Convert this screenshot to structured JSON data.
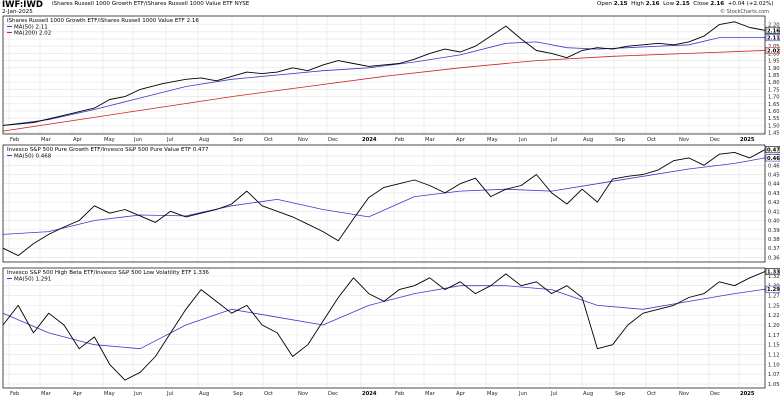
{
  "header": {
    "symbol": "IWF:IWD",
    "title": "iShares Russell 1000 Growth ETF/iShares Russell 1000 Value ETF  NYSE",
    "date": "2-Jan-2025",
    "open_label": "Open",
    "open": "2.15",
    "high_label": "High",
    "high": "2.16",
    "low_label": "Low",
    "low": "2.15",
    "close_label": "Close",
    "close": "2.16",
    "change": "+0.04 (+2.02%)",
    "watermark": "© StockCharts.com"
  },
  "colors": {
    "price": "#000000",
    "ma50": "#3a3acc",
    "ma200": "#cc2222",
    "grid": "#e4e4e4",
    "frame": "#000000"
  },
  "chart_data": [
    {
      "type": "line",
      "title": "iShares Russell 1000 Growth ETF/iShares Russell 1000 Value ETF 2.16",
      "x_tick_labels": [
        "Feb",
        "Mar",
        "Apr",
        "May",
        "Jun",
        "Jul",
        "Aug",
        "Sep",
        "Oct",
        "Nov",
        "Dec",
        "2024",
        "Feb",
        "Mar",
        "Apr",
        "May",
        "Jun",
        "Jul",
        "Aug",
        "Sep",
        "Oct",
        "Nov",
        "Dec",
        "2025"
      ],
      "legend": [
        "MA(50) 2.11",
        "MA(200) 2.02"
      ],
      "y_ticks": [
        "2.20",
        "2.15",
        "2.10",
        "2.05",
        "2.00",
        "1.95",
        "1.90",
        "1.85",
        "1.80",
        "1.75",
        "1.70",
        "1.65",
        "1.60",
        "1.55",
        "1.50",
        "1.45"
      ],
      "ylim": [
        1.44,
        2.26
      ],
      "last_value_labels": [
        "2.16",
        "2.11",
        "2.02"
      ],
      "series": [
        {
          "name": "iShares Russell 1000 Growth ETF/iShares Russell 1000 Value ETF",
          "key": "price",
          "x": [
            0,
            4,
            8,
            12,
            14,
            16,
            18,
            21,
            24,
            26,
            28,
            30,
            32,
            34,
            36,
            38,
            40,
            42,
            44,
            46,
            48,
            50,
            52,
            54,
            56,
            58,
            60,
            62,
            64,
            66,
            68,
            70,
            72,
            74,
            76,
            78,
            80,
            82,
            84,
            86,
            88,
            90,
            92,
            94,
            96,
            98,
            100
          ],
          "y": [
            1.5,
            1.52,
            1.57,
            1.62,
            1.68,
            1.7,
            1.75,
            1.79,
            1.82,
            1.83,
            1.81,
            1.84,
            1.87,
            1.86,
            1.87,
            1.9,
            1.88,
            1.92,
            1.95,
            1.93,
            1.91,
            1.92,
            1.93,
            1.96,
            2.0,
            2.03,
            2.01,
            2.05,
            2.12,
            2.19,
            2.1,
            2.02,
            2.0,
            1.97,
            2.02,
            2.04,
            2.03,
            2.05,
            2.06,
            2.07,
            2.06,
            2.08,
            2.12,
            2.2,
            2.22,
            2.18,
            2.16
          ]
        },
        {
          "name": "MA(50)",
          "key": "ma50",
          "x": [
            0,
            6,
            12,
            18,
            24,
            30,
            36,
            42,
            48,
            54,
            60,
            66,
            70,
            74,
            78,
            82,
            86,
            90,
            94,
            98,
            100
          ],
          "y": [
            1.5,
            1.54,
            1.61,
            1.69,
            1.77,
            1.82,
            1.85,
            1.88,
            1.9,
            1.94,
            1.99,
            2.07,
            2.08,
            2.04,
            2.03,
            2.04,
            2.05,
            2.06,
            2.11,
            2.11,
            2.11
          ]
        },
        {
          "name": "MA(200)",
          "key": "ma200",
          "x": [
            0,
            10,
            20,
            30,
            40,
            50,
            60,
            70,
            80,
            90,
            100
          ],
          "y": [
            1.46,
            1.54,
            1.62,
            1.7,
            1.77,
            1.84,
            1.9,
            1.95,
            1.98,
            2.0,
            2.02
          ]
        }
      ]
    },
    {
      "type": "line",
      "title": "Invesco S&P 500 Pure Growth ETF/Invesco S&P 500 Pure Value ETF 0.477",
      "legend": [
        "MA(50) 0.468"
      ],
      "y_ticks": [
        "0.470",
        "0.460",
        "0.450",
        "0.440",
        "0.430",
        "0.420",
        "0.410",
        "0.400",
        "0.390",
        "0.380",
        "0.370",
        "0.360"
      ],
      "ylim": [
        0.355,
        0.482
      ],
      "last_value_labels": [
        "0.477",
        "0.468"
      ],
      "series": [
        {
          "name": "Invesco S&P 500 Pure Growth ETF/Invesco S&P 500 Pure Value ETF",
          "key": "price",
          "x": [
            0,
            2,
            4,
            6,
            8,
            10,
            12,
            14,
            16,
            18,
            20,
            22,
            24,
            26,
            28,
            30,
            32,
            34,
            36,
            38,
            40,
            42,
            44,
            46,
            48,
            50,
            52,
            54,
            56,
            58,
            60,
            62,
            64,
            66,
            68,
            70,
            72,
            74,
            76,
            78,
            80,
            82,
            84,
            86,
            88,
            90,
            92,
            94,
            96,
            98,
            100
          ],
          "y": [
            0.37,
            0.362,
            0.375,
            0.385,
            0.393,
            0.4,
            0.416,
            0.408,
            0.412,
            0.405,
            0.398,
            0.41,
            0.404,
            0.408,
            0.412,
            0.418,
            0.432,
            0.416,
            0.41,
            0.404,
            0.396,
            0.388,
            0.378,
            0.402,
            0.425,
            0.436,
            0.44,
            0.444,
            0.438,
            0.43,
            0.44,
            0.446,
            0.426,
            0.434,
            0.438,
            0.45,
            0.43,
            0.418,
            0.434,
            0.42,
            0.445,
            0.448,
            0.45,
            0.455,
            0.465,
            0.468,
            0.46,
            0.472,
            0.474,
            0.468,
            0.477
          ]
        },
        {
          "name": "MA(50)",
          "key": "ma50",
          "x": [
            0,
            6,
            12,
            18,
            24,
            30,
            36,
            42,
            48,
            54,
            60,
            66,
            72,
            78,
            84,
            90,
            96,
            100
          ],
          "y": [
            0.385,
            0.388,
            0.4,
            0.406,
            0.405,
            0.416,
            0.423,
            0.412,
            0.404,
            0.426,
            0.432,
            0.434,
            0.432,
            0.44,
            0.448,
            0.456,
            0.462,
            0.468
          ]
        }
      ]
    },
    {
      "type": "line",
      "title": "Invesco S&P 500 High Beta ETF/Invesco S&P 500 Low Volatility ETF 1.336",
      "legend": [
        "MA(50) 1.291"
      ],
      "y_ticks": [
        "1.325",
        "1.300",
        "1.275",
        "1.250",
        "1.225",
        "1.200",
        "1.175",
        "1.150",
        "1.125",
        "1.100",
        "1.075",
        "1.050"
      ],
      "ylim": [
        1.04,
        1.345
      ],
      "last_value_labels": [
        "1.336",
        "1.291"
      ],
      "series": [
        {
          "name": "Invesco S&P 500 High Beta ETF/Invesco S&P 500 Low Volatility ETF",
          "key": "price",
          "x": [
            0,
            2,
            4,
            6,
            8,
            10,
            12,
            14,
            16,
            18,
            20,
            22,
            24,
            26,
            28,
            30,
            32,
            34,
            36,
            38,
            40,
            42,
            44,
            46,
            48,
            50,
            52,
            54,
            56,
            58,
            60,
            62,
            64,
            66,
            68,
            70,
            72,
            74,
            76,
            78,
            80,
            82,
            84,
            86,
            88,
            90,
            92,
            94,
            96,
            98,
            100
          ],
          "y": [
            1.2,
            1.25,
            1.18,
            1.23,
            1.2,
            1.14,
            1.17,
            1.1,
            1.06,
            1.08,
            1.12,
            1.18,
            1.24,
            1.29,
            1.26,
            1.23,
            1.25,
            1.2,
            1.18,
            1.12,
            1.15,
            1.21,
            1.27,
            1.32,
            1.28,
            1.26,
            1.29,
            1.3,
            1.32,
            1.29,
            1.31,
            1.28,
            1.3,
            1.33,
            1.3,
            1.31,
            1.28,
            1.3,
            1.27,
            1.14,
            1.15,
            1.2,
            1.23,
            1.24,
            1.25,
            1.27,
            1.28,
            1.31,
            1.3,
            1.32,
            1.336
          ]
        },
        {
          "name": "MA(50)",
          "key": "ma50",
          "x": [
            0,
            6,
            12,
            18,
            24,
            30,
            36,
            42,
            48,
            54,
            60,
            66,
            72,
            78,
            84,
            90,
            96,
            100
          ],
          "y": [
            1.23,
            1.18,
            1.15,
            1.14,
            1.2,
            1.24,
            1.22,
            1.2,
            1.25,
            1.28,
            1.3,
            1.3,
            1.29,
            1.25,
            1.24,
            1.26,
            1.28,
            1.291
          ]
        }
      ]
    }
  ]
}
